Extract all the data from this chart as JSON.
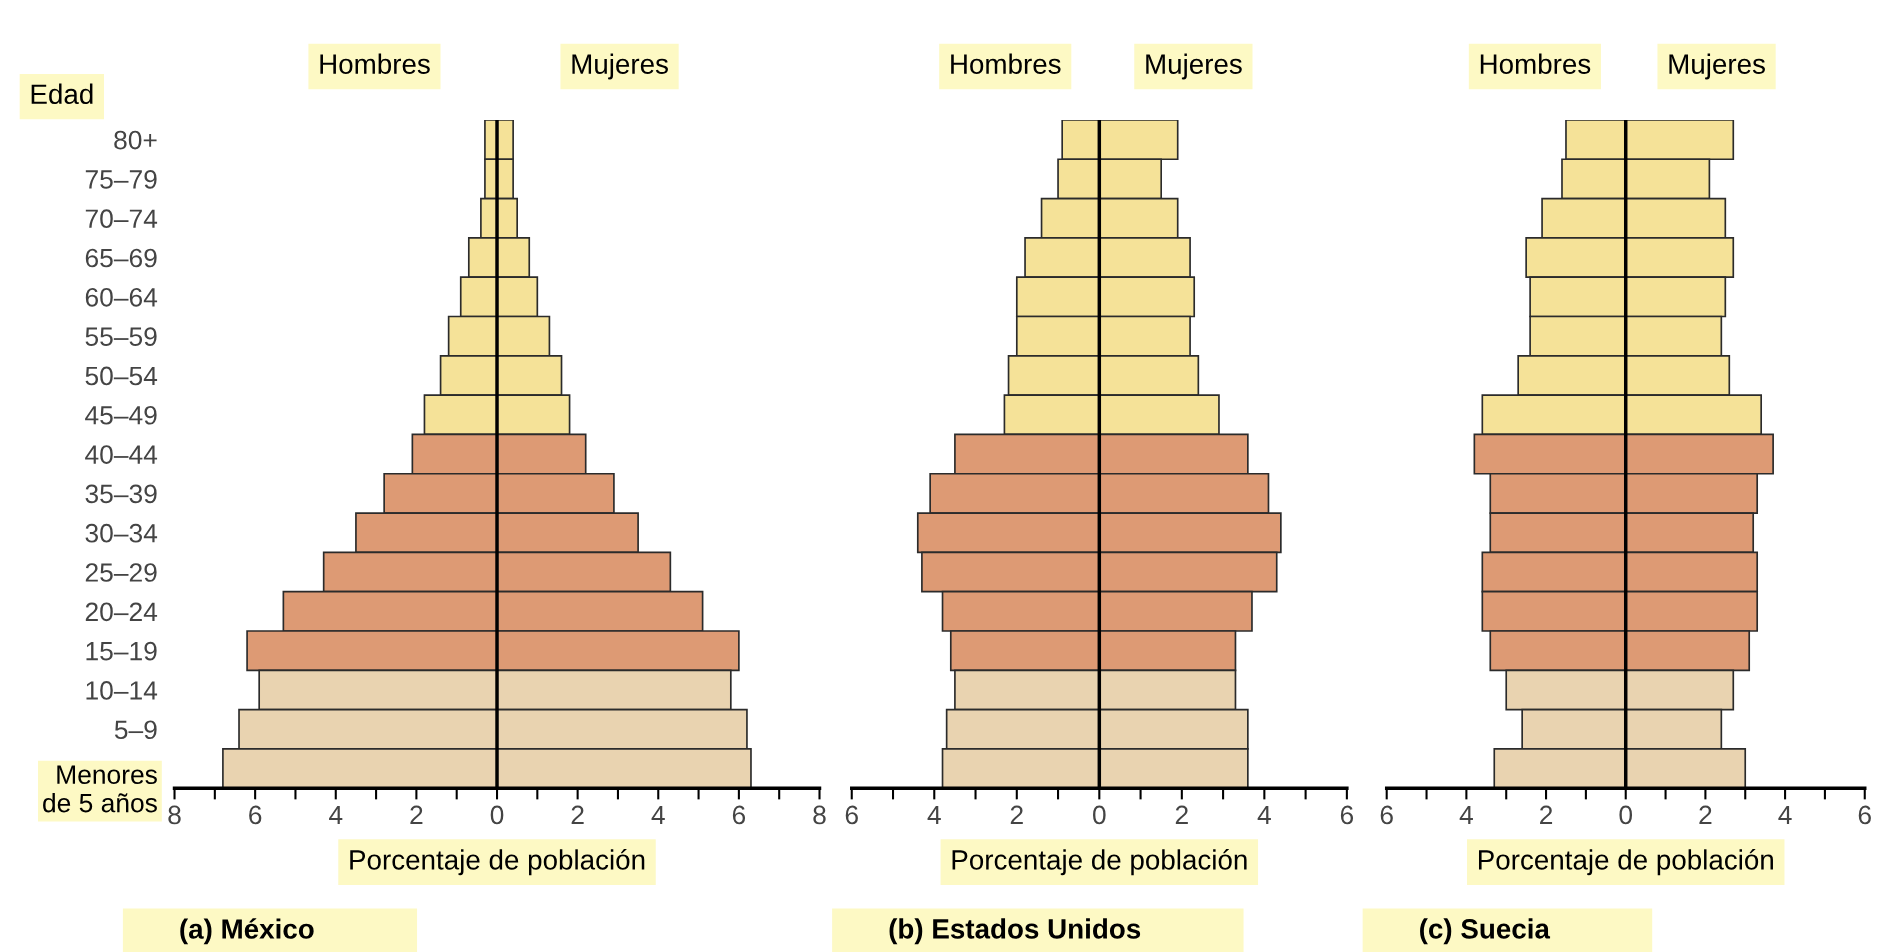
{
  "chart_data": [
    {
      "type": "bar",
      "orientation": "horizontal",
      "stacked": true,
      "title": "(a) México",
      "xlabel": "Porcentaje de población",
      "ylabel": "Edad",
      "categories": [
        "80+",
        "75–79",
        "70–74",
        "65–69",
        "60–64",
        "55–59",
        "50–54",
        "45–49",
        "40–44",
        "35–39",
        "30–34",
        "25–29",
        "20–24",
        "15–19",
        "10–14",
        "5–9",
        "Menores\nde 5 años"
      ],
      "series": [
        {
          "name": "Hombres",
          "values": [
            -0.3,
            -0.3,
            -0.4,
            -0.7,
            -0.9,
            -1.2,
            -1.4,
            -1.8,
            -2.1,
            -2.8,
            -3.5,
            -4.3,
            -5.3,
            -6.2,
            -5.9,
            -6.4,
            -6.8
          ],
          "colors": [
            "#f5e298",
            "#f5e298",
            "#f5e298",
            "#f5e298",
            "#f5e298",
            "#f5e298",
            "#f5e298",
            "#f5e298",
            "#dd9a74",
            "#dd9a74",
            "#dd9a74",
            "#dd9a74",
            "#dd9a74",
            "#dd9a74",
            "#e9d3b0",
            "#e9d3b0",
            "#e9d3b0"
          ]
        },
        {
          "name": "Mujeres",
          "values": [
            0.4,
            0.4,
            0.5,
            0.8,
            1.0,
            1.3,
            1.6,
            1.8,
            2.2,
            2.9,
            3.5,
            4.3,
            5.1,
            6.0,
            5.8,
            6.2,
            6.3
          ],
          "colors": [
            "#f5e298",
            "#f5e298",
            "#f5e298",
            "#f5e298",
            "#f5e298",
            "#f5e298",
            "#f5e298",
            "#f5e298",
            "#dd9a74",
            "#dd9a74",
            "#dd9a74",
            "#dd9a74",
            "#dd9a74",
            "#dd9a74",
            "#e9d3b0",
            "#e9d3b0",
            "#e9d3b0"
          ]
        }
      ],
      "xlim": [
        -8,
        8
      ],
      "xticks": [
        {
          "value": -8,
          "label": "8"
        },
        {
          "value": -7,
          "label": null
        },
        {
          "value": -6,
          "label": "6"
        },
        {
          "value": -5,
          "label": null
        },
        {
          "value": -4,
          "label": "4"
        },
        {
          "value": -3,
          "label": null
        },
        {
          "value": -2,
          "label": "2"
        },
        {
          "value": -1,
          "label": null
        },
        0,
        {
          "value": 1,
          "label": null
        },
        2,
        {
          "value": 3,
          "label": null
        },
        4,
        {
          "value": 5,
          "label": null
        },
        6,
        {
          "value": 7,
          "label": null
        },
        8
      ],
      "ref_lines": [
        {
          "axis": "x",
          "value": 0
        }
      ],
      "grid": false,
      "legend": false
    },
    {
      "type": "bar",
      "orientation": "horizontal",
      "stacked": true,
      "title": "(b) Estados Unidos",
      "xlabel": "Porcentaje de población",
      "categories": [
        null,
        null,
        null,
        null,
        null,
        null,
        null,
        null,
        null,
        null,
        null,
        null,
        null,
        null,
        null,
        null,
        null
      ],
      "series": [
        {
          "name": "Hombres",
          "values": [
            -0.9,
            -1.0,
            -1.4,
            -1.8,
            -2.0,
            -2.0,
            -2.2,
            -2.3,
            -3.5,
            -4.1,
            -4.4,
            -4.3,
            -3.8,
            -3.6,
            -3.5,
            -3.7,
            -3.8
          ],
          "colors": [
            "#f5e298",
            "#f5e298",
            "#f5e298",
            "#f5e298",
            "#f5e298",
            "#f5e298",
            "#f5e298",
            "#f5e298",
            "#dd9a74",
            "#dd9a74",
            "#dd9a74",
            "#dd9a74",
            "#dd9a74",
            "#dd9a74",
            "#e9d3b0",
            "#e9d3b0",
            "#e9d3b0"
          ]
        },
        {
          "name": "Mujeres",
          "values": [
            1.9,
            1.5,
            1.9,
            2.2,
            2.3,
            2.2,
            2.4,
            2.9,
            3.6,
            4.1,
            4.4,
            4.3,
            3.7,
            3.3,
            3.3,
            3.6,
            3.6
          ],
          "colors": [
            "#f5e298",
            "#f5e298",
            "#f5e298",
            "#f5e298",
            "#f5e298",
            "#f5e298",
            "#f5e298",
            "#f5e298",
            "#dd9a74",
            "#dd9a74",
            "#dd9a74",
            "#dd9a74",
            "#dd9a74",
            "#dd9a74",
            "#e9d3b0",
            "#e9d3b0",
            "#e9d3b0"
          ]
        }
      ],
      "xlim": [
        -6,
        6
      ],
      "xticks": [
        {
          "value": -6,
          "label": "6"
        },
        {
          "value": -5,
          "label": null
        },
        {
          "value": -4,
          "label": "4"
        },
        {
          "value": -3,
          "label": null
        },
        {
          "value": -2,
          "label": "2"
        },
        {
          "value": -1,
          "label": null
        },
        0,
        {
          "value": 1,
          "label": null
        },
        2,
        {
          "value": 3,
          "label": null
        },
        4,
        {
          "value": 5,
          "label": null
        },
        6
      ],
      "tick_labels": "x",
      "ref_lines": [
        {
          "axis": "x",
          "value": 0
        }
      ],
      "grid": false,
      "legend": false
    },
    {
      "type": "bar",
      "orientation": "horizontal",
      "stacked": true,
      "title": "(c) Suecia",
      "xlabel": "Porcentaje de población",
      "categories": [
        null,
        null,
        null,
        null,
        null,
        null,
        null,
        null,
        null,
        null,
        null,
        null,
        null,
        null,
        null,
        null,
        null
      ],
      "series": [
        {
          "name": "Hombres",
          "values": [
            -1.5,
            -1.6,
            -2.1,
            -2.5,
            -2.4,
            -2.4,
            -2.7,
            -3.6,
            -3.8,
            -3.4,
            -3.4,
            -3.6,
            -3.6,
            -3.4,
            -3.0,
            -2.6,
            -3.3
          ],
          "colors": [
            "#f5e298",
            "#f5e298",
            "#f5e298",
            "#f5e298",
            "#f5e298",
            "#f5e298",
            "#f5e298",
            "#f5e298",
            "#dd9a74",
            "#dd9a74",
            "#dd9a74",
            "#dd9a74",
            "#dd9a74",
            "#dd9a74",
            "#e9d3b0",
            "#e9d3b0",
            "#e9d3b0"
          ]
        },
        {
          "name": "Mujeres",
          "values": [
            2.7,
            2.1,
            2.5,
            2.7,
            2.5,
            2.4,
            2.6,
            3.4,
            3.7,
            3.3,
            3.2,
            3.3,
            3.3,
            3.1,
            2.7,
            2.4,
            3.0
          ],
          "colors": [
            "#f5e298",
            "#f5e298",
            "#f5e298",
            "#f5e298",
            "#f5e298",
            "#f5e298",
            "#f5e298",
            "#f5e298",
            "#dd9a74",
            "#dd9a74",
            "#dd9a74",
            "#dd9a74",
            "#dd9a74",
            "#dd9a74",
            "#e9d3b0",
            "#e9d3b0",
            "#e9d3b0"
          ]
        }
      ],
      "xlim": [
        -6,
        6
      ],
      "xticks": [
        {
          "value": -6,
          "label": "6"
        },
        {
          "value": -5,
          "label": null
        },
        {
          "value": -4,
          "label": "4"
        },
        {
          "value": -3,
          "label": null
        },
        {
          "value": -2,
          "label": "2"
        },
        {
          "value": -1,
          "label": null
        },
        0,
        {
          "value": 1,
          "label": null
        },
        2,
        {
          "value": 3,
          "label": null
        },
        4,
        {
          "value": 5,
          "label": null
        },
        6
      ],
      "tick_labels": "x",
      "ref_lines": [
        {
          "axis": "x",
          "value": 0
        }
      ],
      "grid": false,
      "legend": false
    }
  ]
}
